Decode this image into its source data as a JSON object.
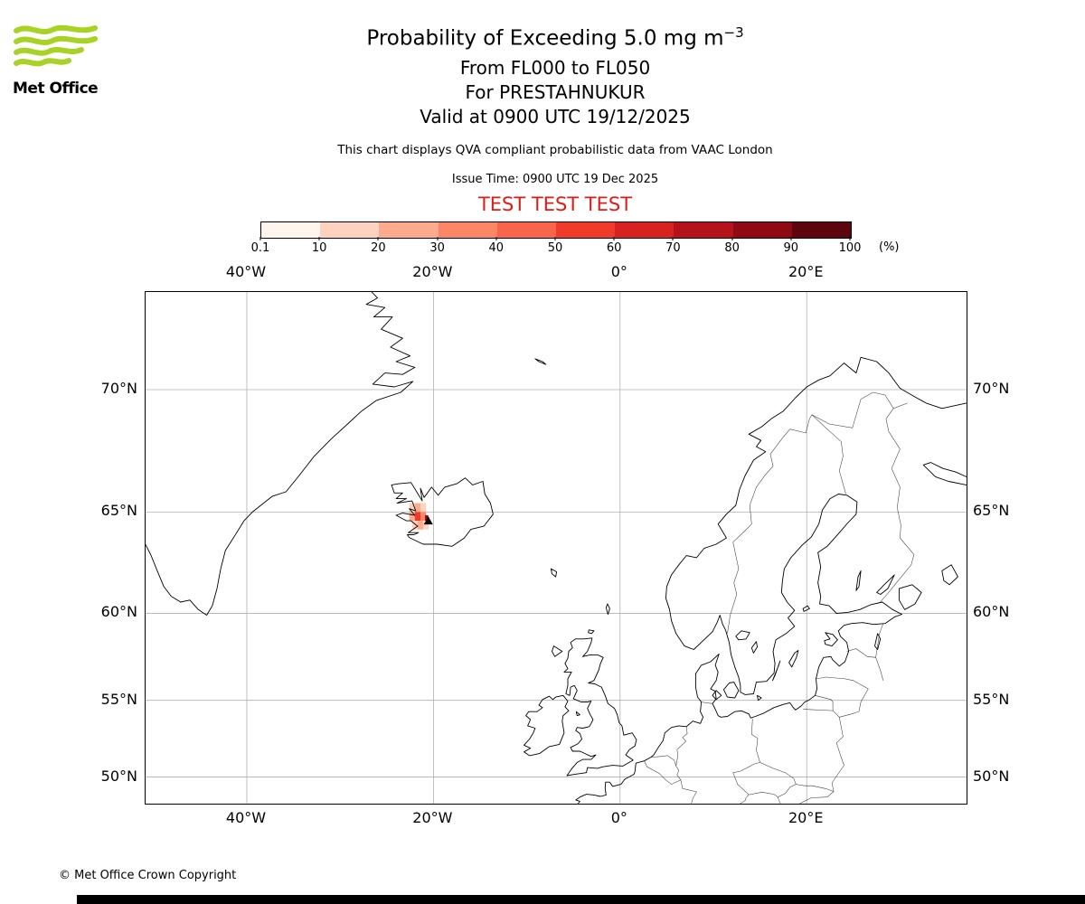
{
  "branding": {
    "logo_text": "Met Office",
    "logo_green": "#A8D324"
  },
  "title": {
    "line1": "Probability of Exceeding 5.0 mg m",
    "line1_sup": "−3",
    "line2": "From FL000 to FL050",
    "line3": "For PRESTAHNUKUR",
    "line4": "Valid at 0900 UTC 19/12/2025",
    "note": "This chart displays QVA compliant probabilistic data from VAAC London",
    "issue_time": "Issue Time: 0900 UTC 19 Dec 2025",
    "test_banner": "TEST TEST TEST",
    "test_color": "#dd1d15"
  },
  "colorbar": {
    "unit": "(%)",
    "tick_labels": [
      "0.1",
      "10",
      "20",
      "30",
      "40",
      "50",
      "60",
      "70",
      "80",
      "90",
      "100"
    ],
    "colors": [
      "#fff4ee",
      "#fdd2bf",
      "#fcab8f",
      "#fc8767",
      "#f7664a",
      "#f03b2b",
      "#d62221",
      "#b41319",
      "#8e0912",
      "#5d050c"
    ]
  },
  "map": {
    "extent": {
      "lon_min": -50.9,
      "lon_max": 37.1,
      "lat_min": 48.1,
      "lat_max": 73.3
    },
    "grid_lons": [
      {
        "lon": -40,
        "label": "40°W"
      },
      {
        "lon": -20,
        "label": "20°W"
      },
      {
        "lon": 0,
        "label": "0°"
      },
      {
        "lon": 20,
        "label": "20°E"
      }
    ],
    "grid_lats": [
      {
        "lat": 70,
        "label": "70°N"
      },
      {
        "lat": 65,
        "label": "65°N"
      },
      {
        "lat": 60,
        "label": "60°N"
      },
      {
        "lat": 55,
        "label": "55°N"
      },
      {
        "lat": 50,
        "label": "50°N"
      }
    ],
    "volcano": {
      "name": "PRESTAHNUKUR",
      "lon": -20.55,
      "lat": 64.6
    },
    "hazard_cells": [
      {
        "lon": -22.6,
        "lat": 65.0,
        "w": 0.6,
        "h": 0.4,
        "color": "#fdd2bf"
      },
      {
        "lon": -22.0,
        "lat": 65.0,
        "w": 0.6,
        "h": 0.4,
        "color": "#fcab8f"
      },
      {
        "lon": -21.4,
        "lat": 65.0,
        "w": 0.6,
        "h": 0.4,
        "color": "#fdd2bf"
      },
      {
        "lon": -22.6,
        "lat": 64.6,
        "w": 0.6,
        "h": 0.4,
        "color": "#fcab8f"
      },
      {
        "lon": -22.0,
        "lat": 64.6,
        "w": 0.6,
        "h": 0.4,
        "color": "#f03b2b"
      },
      {
        "lon": -21.4,
        "lat": 64.6,
        "w": 0.6,
        "h": 0.4,
        "color": "#fc8767"
      },
      {
        "lon": -20.9,
        "lat": 64.55,
        "w": 0.35,
        "h": 0.3,
        "color": "#8e0912"
      },
      {
        "lon": -22.3,
        "lat": 64.2,
        "w": 0.6,
        "h": 0.4,
        "color": "#fdd2bf"
      },
      {
        "lon": -21.7,
        "lat": 64.2,
        "w": 0.6,
        "h": 0.4,
        "color": "#fcab8f"
      },
      {
        "lon": -21.1,
        "lat": 64.2,
        "w": 0.6,
        "h": 0.4,
        "color": "#fdd2bf"
      }
    ]
  },
  "footer": {
    "copyright": "© Met Office Crown Copyright"
  }
}
